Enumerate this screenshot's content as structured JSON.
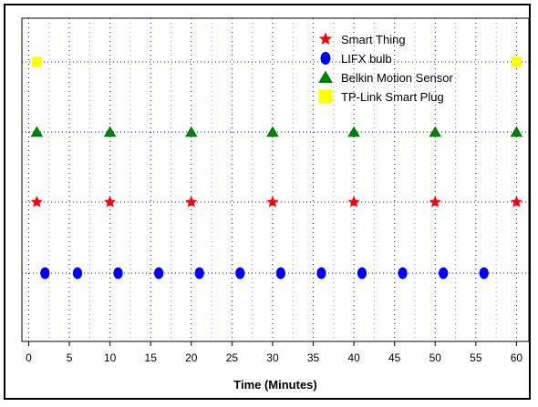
{
  "chart_data": {
    "type": "scatter",
    "title": "",
    "xlabel": "Time (Minutes)",
    "ylabel": "",
    "xlim": [
      0,
      61
    ],
    "x_ticks": [
      0,
      5,
      10,
      15,
      20,
      25,
      30,
      35,
      40,
      45,
      50,
      55,
      60
    ],
    "grid": true,
    "legend_position": "top-right",
    "series": [
      {
        "name": "Smart Thing",
        "marker": "star",
        "color": "#ff0000",
        "level": 2,
        "x": [
          1,
          10,
          20,
          30,
          40,
          50,
          60
        ]
      },
      {
        "name": "LIFX bulb",
        "marker": "circle",
        "color": "#0000ff",
        "level": 1,
        "x": [
          2,
          6,
          11,
          16,
          21,
          26,
          31,
          36,
          41,
          46,
          51,
          56
        ]
      },
      {
        "name": "Belkin Motion Sensor",
        "marker": "triangle",
        "color": "#008000",
        "level": 3,
        "x": [
          1,
          10,
          20,
          30,
          40,
          50,
          60
        ]
      },
      {
        "name": "TP-Link Smart Plug",
        "marker": "square",
        "color": "#ffff00",
        "level": 4,
        "x": [
          1,
          60
        ]
      }
    ]
  }
}
